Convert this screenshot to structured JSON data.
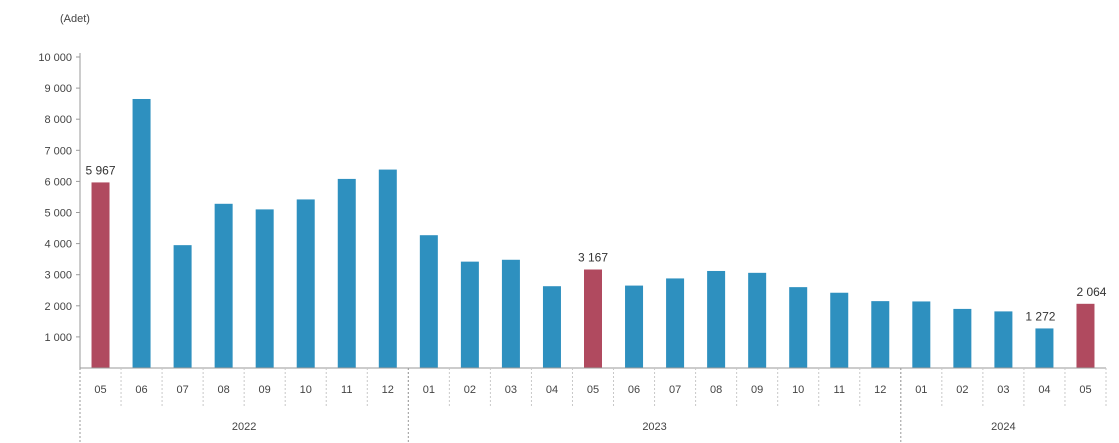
{
  "chart_data": {
    "type": "bar",
    "unit_label": "(Adet)",
    "ylim": [
      0,
      10000
    ],
    "y_ticks": [
      "10 000",
      "9 000",
      "8 000",
      "7 000",
      "6 000",
      "5 000",
      "4 000",
      "3 000",
      "2 000",
      "1 000"
    ],
    "y_tick_values": [
      10000,
      9000,
      8000,
      7000,
      6000,
      5000,
      4000,
      3000,
      2000,
      1000
    ],
    "categories": [
      "05",
      "06",
      "07",
      "08",
      "09",
      "10",
      "11",
      "12",
      "01",
      "02",
      "03",
      "04",
      "05",
      "06",
      "07",
      "08",
      "09",
      "10",
      "11",
      "12",
      "01",
      "02",
      "03",
      "04",
      "05"
    ],
    "values": [
      5967,
      8650,
      3950,
      5280,
      5100,
      5420,
      6080,
      6380,
      4270,
      3420,
      3480,
      2630,
      3167,
      2650,
      2880,
      3120,
      3060,
      2600,
      2420,
      2150,
      2140,
      1900,
      1820,
      1272,
      2064
    ],
    "years": [
      {
        "label": "2022",
        "start": 0,
        "end": 7
      },
      {
        "label": "2023",
        "start": 8,
        "end": 19
      },
      {
        "label": "2024",
        "start": 20,
        "end": 24
      }
    ],
    "highlighted": [
      0,
      12,
      24
    ],
    "data_labels": [
      {
        "index": 0,
        "text": "5 967"
      },
      {
        "index": 12,
        "text": "3 167"
      },
      {
        "index": 23,
        "text": "1 272"
      },
      {
        "index": 24,
        "text": "2 064"
      }
    ],
    "colors": {
      "bar": "#2e90bf",
      "highlight": "#b04a5f"
    },
    "grid": false,
    "legend": "none"
  }
}
